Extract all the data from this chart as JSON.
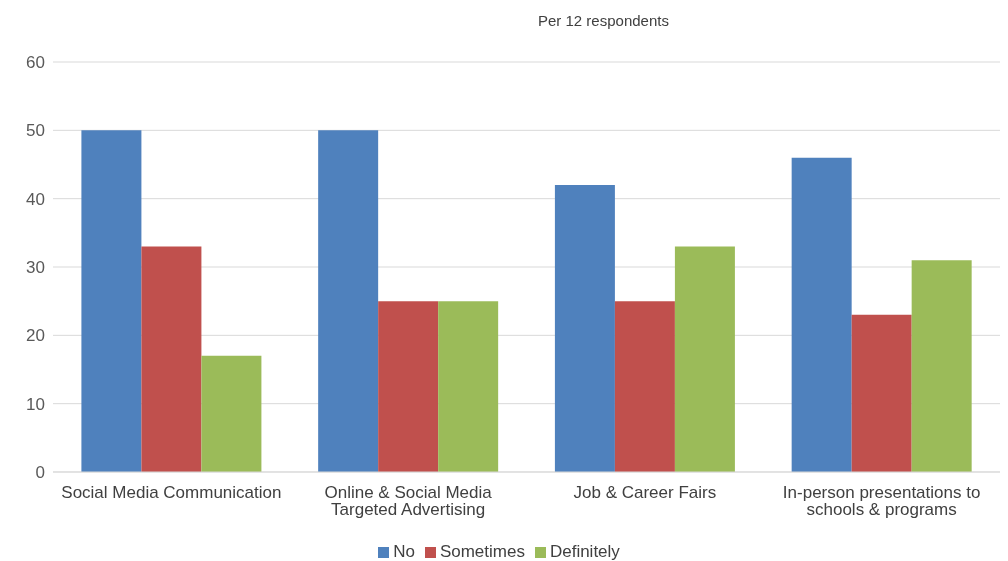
{
  "chart_data": {
    "type": "bar",
    "title": "Per 12 respondents",
    "categories": [
      "Social Media Communication",
      "Online & Social Media Targeted Advertising",
      "Job & Career Fairs",
      "In-person presentations to schools & programs"
    ],
    "series": [
      {
        "name": "No",
        "color": "#4f81bd",
        "values": [
          50,
          50,
          42,
          46
        ]
      },
      {
        "name": "Sometimes",
        "color": "#c0504d",
        "values": [
          33,
          25,
          25,
          23
        ]
      },
      {
        "name": "Definitely",
        "color": "#9bbb59",
        "values": [
          17,
          25,
          33,
          31
        ]
      }
    ],
    "ylim": [
      0,
      60
    ],
    "yticks": [
      0,
      10,
      20,
      30,
      40,
      50,
      60
    ],
    "grid": "y",
    "legend": "bottom"
  }
}
